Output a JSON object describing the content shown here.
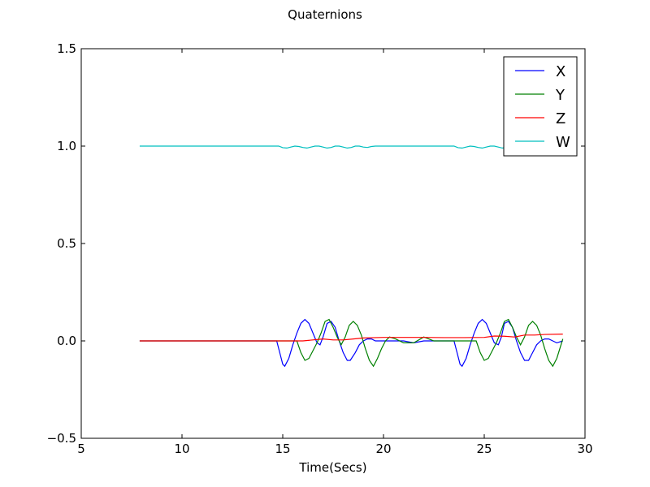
{
  "chart_data": {
    "type": "line",
    "title": "Quaternions",
    "xlabel": "Time(Secs)",
    "ylabel": "",
    "xlim": [
      5,
      30
    ],
    "ylim": [
      -0.5,
      1.5
    ],
    "xticks": [
      5,
      10,
      15,
      20,
      25,
      30
    ],
    "yticks": [
      -0.5,
      0.0,
      0.5,
      1.0,
      1.5
    ],
    "xtick_labels": [
      "5",
      "10",
      "15",
      "20",
      "25",
      "30"
    ],
    "ytick_labels": [
      "−0.5",
      "0.0",
      "0.5",
      "1.0",
      "1.5"
    ],
    "grid": false,
    "legend_position": "top-right",
    "series": [
      {
        "name": "X",
        "color": "#0000ff",
        "x": [
          7.9,
          14.7,
          14.85,
          15.0,
          15.1,
          15.3,
          15.5,
          15.7,
          15.9,
          16.1,
          16.3,
          16.5,
          16.7,
          16.85,
          17.0,
          17.2,
          17.4,
          17.6,
          17.8,
          18.0,
          18.2,
          18.35,
          18.6,
          18.8,
          19.0,
          19.2,
          19.4,
          19.6,
          19.8,
          20.0,
          21.0,
          21.5,
          22.0,
          23.0,
          23.5,
          23.65,
          23.8,
          23.9,
          24.1,
          24.3,
          24.5,
          24.7,
          24.9,
          25.1,
          25.3,
          25.5,
          25.7,
          25.85,
          26.0,
          26.2,
          26.4,
          26.6,
          26.8,
          27.0,
          27.2,
          27.4,
          27.6,
          27.8,
          28.0,
          28.2,
          28.4,
          28.6,
          28.9
        ],
        "y": [
          0.0,
          0.0,
          -0.06,
          -0.12,
          -0.13,
          -0.09,
          -0.02,
          0.04,
          0.09,
          0.11,
          0.09,
          0.04,
          -0.01,
          -0.02,
          0.02,
          0.09,
          0.1,
          0.07,
          0.0,
          -0.06,
          -0.1,
          -0.1,
          -0.06,
          -0.02,
          0.0,
          0.01,
          0.01,
          0.0,
          0.0,
          0.0,
          0.0,
          -0.01,
          0.0,
          0.0,
          0.0,
          -0.06,
          -0.12,
          -0.13,
          -0.09,
          -0.02,
          0.04,
          0.09,
          0.11,
          0.09,
          0.04,
          -0.01,
          -0.02,
          0.02,
          0.09,
          0.1,
          0.07,
          0.0,
          -0.06,
          -0.1,
          -0.1,
          -0.06,
          -0.02,
          0.0,
          0.01,
          0.01,
          0.0,
          -0.01,
          0.0
        ]
      },
      {
        "name": "Y",
        "color": "#008000",
        "x": [
          7.9,
          15.7,
          15.9,
          16.1,
          16.3,
          16.5,
          16.7,
          16.9,
          17.1,
          17.3,
          17.5,
          17.7,
          17.9,
          18.1,
          18.3,
          18.5,
          18.7,
          18.9,
          19.1,
          19.3,
          19.5,
          19.7,
          19.9,
          20.1,
          20.3,
          20.6,
          21.0,
          21.5,
          22.0,
          22.5,
          23.0,
          24.6,
          24.8,
          25.0,
          25.2,
          25.4,
          25.6,
          25.8,
          26.0,
          26.2,
          26.4,
          26.6,
          26.8,
          27.0,
          27.2,
          27.4,
          27.6,
          27.8,
          28.0,
          28.2,
          28.4,
          28.6,
          28.9
        ],
        "y": [
          0.0,
          0.0,
          -0.06,
          -0.1,
          -0.09,
          -0.05,
          -0.01,
          0.04,
          0.1,
          0.11,
          0.07,
          0.02,
          -0.02,
          0.02,
          0.08,
          0.1,
          0.08,
          0.03,
          -0.04,
          -0.1,
          -0.13,
          -0.09,
          -0.04,
          0.0,
          0.02,
          0.01,
          -0.01,
          -0.01,
          0.02,
          0.0,
          0.0,
          0.0,
          -0.06,
          -0.1,
          -0.09,
          -0.05,
          -0.01,
          0.04,
          0.1,
          0.11,
          0.07,
          0.02,
          -0.02,
          0.02,
          0.08,
          0.1,
          0.08,
          0.03,
          -0.04,
          -0.1,
          -0.13,
          -0.09,
          0.01
        ]
      },
      {
        "name": "Z",
        "color": "#ff0000",
        "x": [
          7.9,
          15.0,
          16.0,
          17.0,
          17.5,
          18.0,
          18.5,
          19.0,
          20.0,
          21.0,
          22.0,
          23.0,
          24.0,
          25.0,
          25.5,
          26.0,
          26.5,
          27.0,
          27.5,
          28.0,
          28.9
        ],
        "y": [
          0.0,
          0.0,
          0.0,
          0.01,
          0.005,
          0.005,
          0.01,
          0.015,
          0.018,
          0.018,
          0.018,
          0.017,
          0.017,
          0.018,
          0.025,
          0.024,
          0.02,
          0.03,
          0.03,
          0.033,
          0.035
        ]
      },
      {
        "name": "W",
        "color": "#00bfbf",
        "x": [
          7.9,
          14.8,
          15.0,
          15.2,
          15.4,
          15.6,
          15.8,
          16.0,
          16.2,
          16.4,
          16.6,
          16.8,
          17.0,
          17.2,
          17.4,
          17.6,
          17.8,
          18.0,
          18.2,
          18.4,
          18.6,
          18.8,
          19.0,
          19.2,
          19.4,
          19.6,
          19.8,
          20.0,
          21.0,
          22.0,
          23.0,
          23.5,
          23.7,
          23.9,
          24.1,
          24.3,
          24.5,
          24.7,
          24.9,
          25.1,
          25.3,
          25.5,
          25.7,
          25.9,
          26.1,
          26.3,
          26.5,
          26.7,
          26.9,
          27.1,
          27.3,
          27.5,
          27.7,
          27.9,
          28.1,
          28.3,
          28.5,
          28.7,
          28.9
        ],
        "y": [
          1.0,
          1.0,
          0.992,
          0.99,
          0.995,
          1.0,
          0.998,
          0.993,
          0.99,
          0.995,
          1.0,
          1.0,
          0.995,
          0.99,
          0.993,
          1.0,
          1.0,
          0.995,
          0.99,
          0.993,
          1.0,
          1.0,
          0.995,
          0.993,
          0.998,
          1.0,
          1.0,
          1.0,
          1.0,
          1.0,
          1.0,
          1.0,
          0.992,
          0.99,
          0.995,
          1.0,
          0.998,
          0.993,
          0.99,
          0.995,
          1.0,
          1.0,
          0.995,
          0.99,
          0.993,
          1.0,
          1.0,
          0.995,
          0.99,
          0.993,
          1.0,
          1.0,
          0.995,
          0.993,
          0.998,
          1.0,
          0.99,
          0.985,
          0.98
        ]
      }
    ]
  }
}
